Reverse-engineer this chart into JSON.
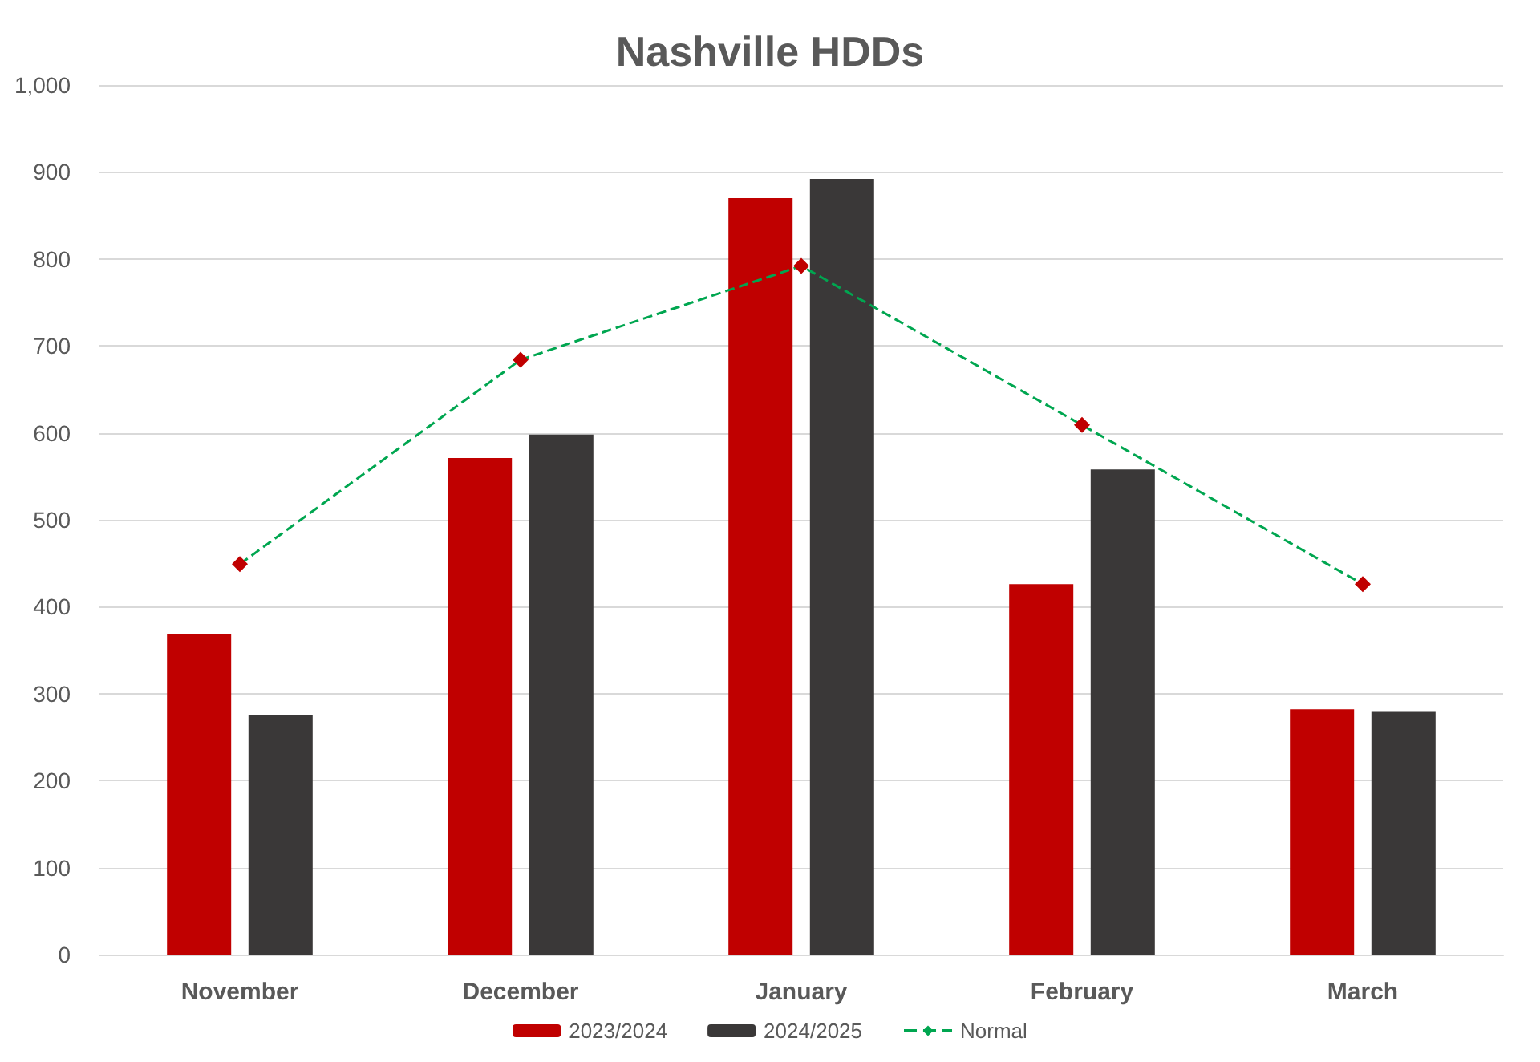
{
  "chart_data": {
    "type": "bar",
    "title": "Nashville HDDs",
    "categories": [
      "November",
      "December",
      "January",
      "February",
      "March"
    ],
    "series": [
      {
        "name": "2023/2024",
        "color": "#c00000",
        "values": [
          368,
          571,
          870,
          426,
          282
        ]
      },
      {
        "name": "2024/2025",
        "color": "#3a3838",
        "values": [
          275,
          598,
          892,
          558,
          279
        ]
      },
      {
        "name": "Normal",
        "type": "line",
        "color": "#00a650",
        "marker": "diamond",
        "line_style": "dashed",
        "values": [
          449,
          684,
          792,
          609,
          426
        ]
      }
    ],
    "ylim": [
      0,
      1000
    ],
    "yticks": [
      0,
      100,
      200,
      300,
      400,
      500,
      600,
      700,
      800,
      900,
      {
        "value": 1000,
        "label": "1,000"
      }
    ],
    "grid": "y",
    "legend": "bottom"
  }
}
